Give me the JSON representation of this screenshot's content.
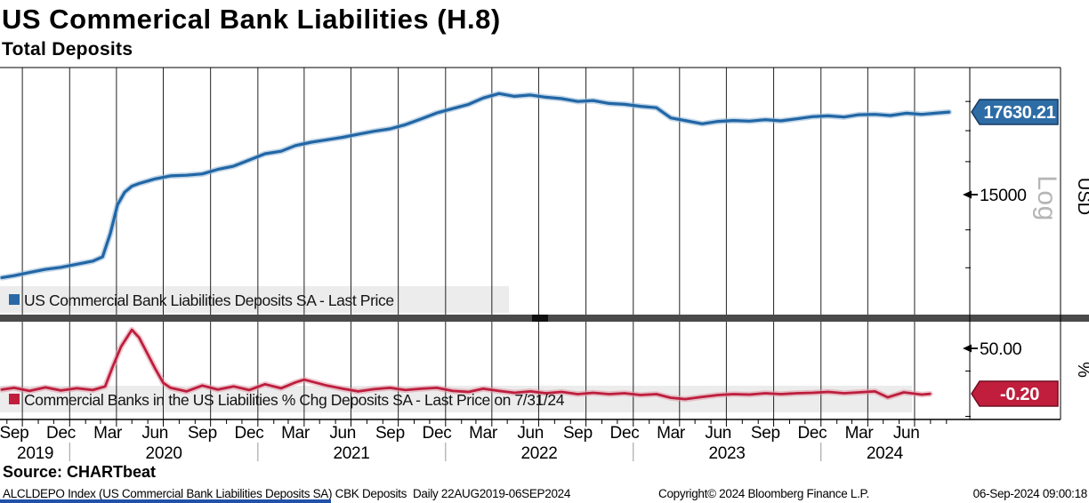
{
  "header": {
    "title": "US Commerical Bank Liabilities (H.8)",
    "subtitle": "Total Deposits"
  },
  "colors": {
    "legend_strip": "#ececec",
    "gridline": "#222222",
    "divider": "#4a4a4a",
    "year_separator": "#999999",
    "axis_line": "#000000"
  },
  "top_panel": {
    "legend": {
      "marker_color": "#2a69a5",
      "label": "US Commercial Bank Liabilities Deposits SA - Last Price"
    },
    "last_price_tag": {
      "value": "17630.21",
      "bg": "#2e6ca5",
      "border": "#16395f",
      "text_color": "#ffffff"
    },
    "axis": {
      "tick_label": "15000",
      "scale_label": "Log",
      "unit_label": "USD"
    }
  },
  "bottom_panel": {
    "legend": {
      "marker_color": "#c01e3c",
      "label": "Commercial Banks in the US Liabilities % Chg Deposits SA - Last Price on 7/31/24"
    },
    "last_price_tag": {
      "value": "-0.20",
      "bg": "#c01e3c",
      "border": "#6e0f22",
      "text_color": "#ffffff"
    },
    "axis": {
      "tick_label": "50.00",
      "unit_label": "%"
    }
  },
  "x_axis": {
    "month_labels": [
      {
        "label": "Sep",
        "date": "2019-09-15"
      },
      {
        "label": "Dec",
        "date": "2019-12-15"
      },
      {
        "label": "Mar",
        "date": "2020-03-15"
      },
      {
        "label": "Jun",
        "date": "2020-06-15"
      },
      {
        "label": "Sep",
        "date": "2020-09-15"
      },
      {
        "label": "Dec",
        "date": "2020-12-15"
      },
      {
        "label": "Mar",
        "date": "2021-03-15"
      },
      {
        "label": "Jun",
        "date": "2021-06-15"
      },
      {
        "label": "Sep",
        "date": "2021-09-15"
      },
      {
        "label": "Dec",
        "date": "2021-12-15"
      },
      {
        "label": "Mar",
        "date": "2022-03-15"
      },
      {
        "label": "Jun",
        "date": "2022-06-15"
      },
      {
        "label": "Sep",
        "date": "2022-09-15"
      },
      {
        "label": "Dec",
        "date": "2022-12-15"
      },
      {
        "label": "Mar",
        "date": "2023-03-15"
      },
      {
        "label": "Jun",
        "date": "2023-06-15"
      },
      {
        "label": "Sep",
        "date": "2023-09-15"
      },
      {
        "label": "Dec",
        "date": "2023-12-15"
      },
      {
        "label": "Mar",
        "date": "2024-03-15"
      },
      {
        "label": "Jun",
        "date": "2024-06-15"
      }
    ],
    "year_labels": [
      {
        "label": "2019",
        "center": "2019-10-26"
      },
      {
        "label": "2020",
        "center": "2020-07-02"
      },
      {
        "label": "2021",
        "center": "2021-07-02"
      },
      {
        "label": "2022",
        "center": "2022-07-02"
      },
      {
        "label": "2023",
        "center": "2023-07-02"
      },
      {
        "label": "2024",
        "center": "2024-05-04"
      }
    ],
    "year_separators": [
      "2020-01-01",
      "2021-01-01",
      "2022-01-01",
      "2023-01-01",
      "2024-01-01"
    ],
    "range": [
      "2019-08-22",
      "2024-09-06"
    ]
  },
  "footer": {
    "source_line": "Source: CHARTbeat",
    "security_line": "ALCLDEPO Index (US Commercial Bank Liabilities Deposits SA) CBK Deposits  Daily 22AUG2019-06SEP2024",
    "copyright": "Copyright© 2024 Bloomberg Finance L.P.",
    "timestamp": "06-Sep-2024 09:00:18"
  },
  "chart_data": [
    {
      "type": "line",
      "name": "US Commercial Bank Liabilities Deposits SA - Last Price",
      "panel": "top",
      "scale": "log",
      "unit": "USD",
      "color": "#2166a5",
      "halo_color": "#8fb4d6",
      "width": 3.2,
      "last_price": 17630.21,
      "last_date": "2024-09-06",
      "labeled_ticks": [
        15000
      ],
      "ylim": [
        11850,
        19240
      ],
      "points": [
        [
          "2019-08-22",
          12750
        ],
        [
          "2019-09-15",
          12800
        ],
        [
          "2019-10-15",
          12880
        ],
        [
          "2019-11-15",
          12960
        ],
        [
          "2019-12-15",
          13010
        ],
        [
          "2020-01-15",
          13090
        ],
        [
          "2020-02-15",
          13170
        ],
        [
          "2020-03-05",
          13280
        ],
        [
          "2020-03-20",
          13900
        ],
        [
          "2020-04-03",
          14700
        ],
        [
          "2020-04-17",
          15070
        ],
        [
          "2020-05-01",
          15250
        ],
        [
          "2020-05-15",
          15330
        ],
        [
          "2020-06-15",
          15470
        ],
        [
          "2020-07-15",
          15560
        ],
        [
          "2020-08-15",
          15580
        ],
        [
          "2020-09-15",
          15620
        ],
        [
          "2020-10-15",
          15760
        ],
        [
          "2020-11-15",
          15860
        ],
        [
          "2020-12-15",
          16050
        ],
        [
          "2021-01-15",
          16250
        ],
        [
          "2021-02-15",
          16330
        ],
        [
          "2021-03-15",
          16510
        ],
        [
          "2021-04-15",
          16620
        ],
        [
          "2021-05-15",
          16700
        ],
        [
          "2021-06-15",
          16780
        ],
        [
          "2021-07-15",
          16880
        ],
        [
          "2021-08-15",
          16980
        ],
        [
          "2021-09-15",
          17060
        ],
        [
          "2021-10-15",
          17200
        ],
        [
          "2021-11-15",
          17400
        ],
        [
          "2021-12-15",
          17600
        ],
        [
          "2022-01-15",
          17750
        ],
        [
          "2022-02-15",
          17900
        ],
        [
          "2022-03-15",
          18120
        ],
        [
          "2022-04-15",
          18280
        ],
        [
          "2022-05-15",
          18180
        ],
        [
          "2022-06-15",
          18230
        ],
        [
          "2022-07-15",
          18150
        ],
        [
          "2022-08-15",
          18100
        ],
        [
          "2022-09-15",
          18000
        ],
        [
          "2022-10-15",
          18030
        ],
        [
          "2022-11-15",
          17930
        ],
        [
          "2022-12-15",
          17900
        ],
        [
          "2023-01-15",
          17830
        ],
        [
          "2023-02-15",
          17780
        ],
        [
          "2023-03-15",
          17430
        ],
        [
          "2023-04-15",
          17330
        ],
        [
          "2023-05-15",
          17230
        ],
        [
          "2023-06-15",
          17310
        ],
        [
          "2023-07-15",
          17340
        ],
        [
          "2023-08-15",
          17320
        ],
        [
          "2023-09-15",
          17370
        ],
        [
          "2023-10-15",
          17330
        ],
        [
          "2023-11-15",
          17400
        ],
        [
          "2023-12-15",
          17470
        ],
        [
          "2024-01-15",
          17500
        ],
        [
          "2024-02-15",
          17460
        ],
        [
          "2024-03-15",
          17540
        ],
        [
          "2024-04-15",
          17550
        ],
        [
          "2024-05-15",
          17510
        ],
        [
          "2024-06-15",
          17590
        ],
        [
          "2024-07-15",
          17550
        ],
        [
          "2024-08-15",
          17600
        ],
        [
          "2024-09-06",
          17630.21
        ]
      ]
    },
    {
      "type": "line",
      "name": "Commercial Banks in the US Liabilities % Chg Deposits SA - Last Price on 7/31/24",
      "panel": "bottom",
      "scale": "linear",
      "unit": "%",
      "color": "#bd1e3d",
      "halo_color": "#e09aa7",
      "width": 2.8,
      "last_price": -0.2,
      "last_date": "2024-07-31",
      "labeled_ticks": [
        50
      ],
      "ylim": [
        -28,
        79
      ],
      "points": [
        [
          "2019-08-22",
          4.5
        ],
        [
          "2019-09-15",
          6.5
        ],
        [
          "2019-10-15",
          3.0
        ],
        [
          "2019-11-15",
          7.0
        ],
        [
          "2019-12-15",
          3.5
        ],
        [
          "2020-01-15",
          6.0
        ],
        [
          "2020-02-15",
          4.0
        ],
        [
          "2020-03-10",
          8.0
        ],
        [
          "2020-03-25",
          30
        ],
        [
          "2020-04-10",
          52
        ],
        [
          "2020-05-01",
          70.5
        ],
        [
          "2020-05-15",
          62
        ],
        [
          "2020-06-15",
          28
        ],
        [
          "2020-07-01",
          12
        ],
        [
          "2020-07-15",
          6.5
        ],
        [
          "2020-08-15",
          2.5
        ],
        [
          "2020-09-15",
          9.0
        ],
        [
          "2020-10-15",
          4.5
        ],
        [
          "2020-11-15",
          8.0
        ],
        [
          "2020-12-15",
          4.0
        ],
        [
          "2021-01-15",
          10.5
        ],
        [
          "2021-02-15",
          6.0
        ],
        [
          "2021-03-15",
          12.5
        ],
        [
          "2021-04-01",
          15.5
        ],
        [
          "2021-05-15",
          9.0
        ],
        [
          "2021-06-15",
          5.5
        ],
        [
          "2021-07-15",
          2.5
        ],
        [
          "2021-08-15",
          5.0
        ],
        [
          "2021-09-15",
          6.5
        ],
        [
          "2021-10-15",
          4.0
        ],
        [
          "2021-11-15",
          5.5
        ],
        [
          "2021-12-15",
          6.5
        ],
        [
          "2022-01-15",
          3.0
        ],
        [
          "2022-02-15",
          2.0
        ],
        [
          "2022-03-15",
          5.5
        ],
        [
          "2022-04-15",
          3.0
        ],
        [
          "2022-05-15",
          1.0
        ],
        [
          "2022-06-15",
          2.5
        ],
        [
          "2022-07-15",
          0.5
        ],
        [
          "2022-08-15",
          2.0
        ],
        [
          "2022-09-15",
          -0.5
        ],
        [
          "2022-10-15",
          1.0
        ],
        [
          "2022-11-15",
          -0.5
        ],
        [
          "2022-12-15",
          0.5
        ],
        [
          "2023-01-15",
          -1.5
        ],
        [
          "2023-02-15",
          -0.5
        ],
        [
          "2023-03-15",
          -4.5
        ],
        [
          "2023-04-12",
          -6.0
        ],
        [
          "2023-05-15",
          -3.5
        ],
        [
          "2023-06-15",
          -1.5
        ],
        [
          "2023-07-15",
          -0.5
        ],
        [
          "2023-08-15",
          -1.0
        ],
        [
          "2023-09-15",
          0.5
        ],
        [
          "2023-10-15",
          -0.5
        ],
        [
          "2023-11-15",
          0.5
        ],
        [
          "2023-12-15",
          1.0
        ],
        [
          "2024-01-15",
          2.0
        ],
        [
          "2024-02-15",
          0.5
        ],
        [
          "2024-03-15",
          1.5
        ],
        [
          "2024-04-15",
          2.5
        ],
        [
          "2024-05-10",
          -4.0
        ],
        [
          "2024-06-10",
          1.5
        ],
        [
          "2024-07-15",
          -1.0
        ],
        [
          "2024-07-31",
          -0.2
        ]
      ]
    }
  ]
}
